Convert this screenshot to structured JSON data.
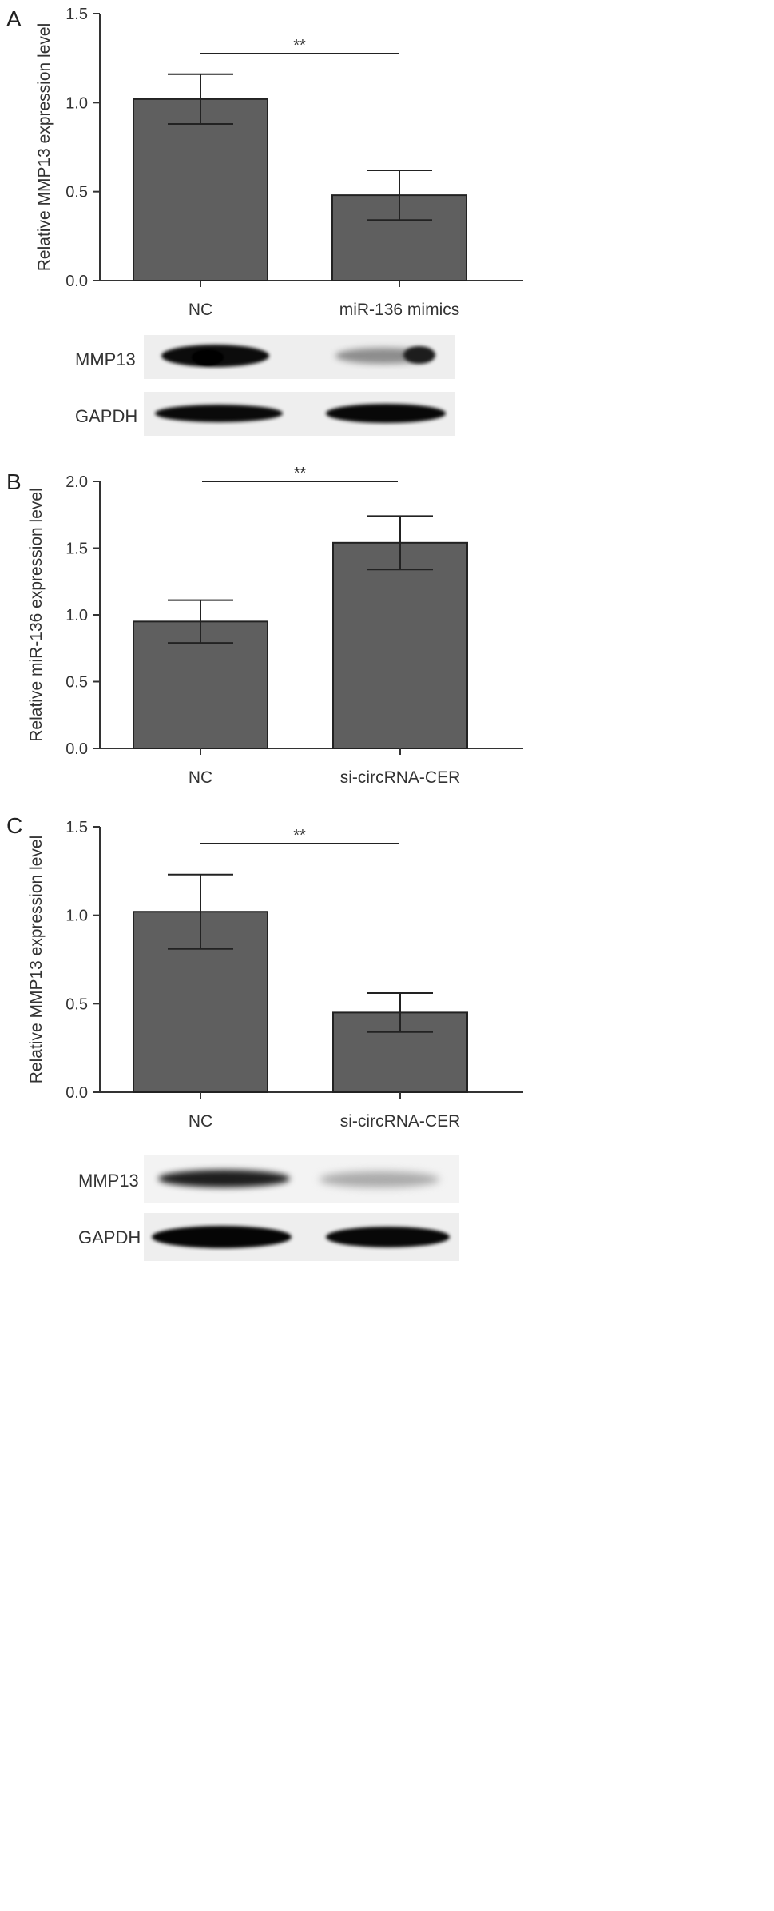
{
  "chart_data": [
    {
      "type": "bar",
      "panel": "A",
      "categories": [
        "NC",
        "miR-136 mimics"
      ],
      "values": [
        1.02,
        0.48
      ],
      "errors": [
        0.14,
        0.14
      ],
      "ylabel": "Relative MMP13 expression level",
      "ylim": [
        0,
        1.5
      ],
      "yticks": [
        "0.0",
        "0.5",
        "1.0",
        "1.5"
      ],
      "significance": "**",
      "bar_color": "#5f5f5f",
      "grid": false
    },
    {
      "type": "bar",
      "panel": "B",
      "categories": [
        "NC",
        "si-circRNA-CER"
      ],
      "values": [
        0.95,
        1.54
      ],
      "errors": [
        0.16,
        0.2
      ],
      "ylabel": "Relative miR-136 expression level",
      "ylim": [
        0,
        2.0
      ],
      "yticks": [
        "0.0",
        "0.5",
        "1.0",
        "1.5",
        "2.0"
      ],
      "significance": "**",
      "bar_color": "#5f5f5f",
      "grid": false
    },
    {
      "type": "bar",
      "panel": "C",
      "categories": [
        "NC",
        "si-circRNA-CER"
      ],
      "values": [
        1.02,
        0.45
      ],
      "errors": [
        0.21,
        0.11
      ],
      "ylabel": "Relative MMP13 expression level",
      "ylim": [
        0,
        1.5
      ],
      "yticks": [
        "0.0",
        "0.5",
        "1.0",
        "1.5"
      ],
      "significance": "**",
      "bar_color": "#5f5f5f",
      "grid": false
    }
  ],
  "blots": [
    {
      "panel": "A",
      "rows": [
        {
          "label": "MMP13"
        },
        {
          "label": "GAPDH"
        }
      ]
    },
    {
      "panel": "C",
      "rows": [
        {
          "label": "MMP13"
        },
        {
          "label": "GAPDH"
        }
      ]
    }
  ]
}
